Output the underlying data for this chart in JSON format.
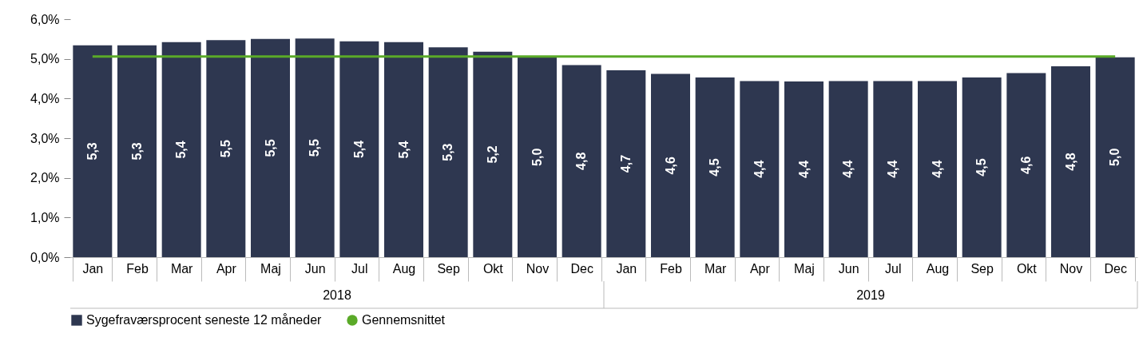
{
  "chart_data": {
    "type": "bar",
    "categories": [
      "Jan",
      "Feb",
      "Mar",
      "Apr",
      "Maj",
      "Jun",
      "Jul",
      "Aug",
      "Sep",
      "Okt",
      "Nov",
      "Dec",
      "Jan",
      "Feb",
      "Mar",
      "Apr",
      "Maj",
      "Jun",
      "Jul",
      "Aug",
      "Sep",
      "Okt",
      "Nov",
      "Dec"
    ],
    "series": [
      {
        "name": "Sygefraværsprocent seneste 12 måneder",
        "color": "#2e3750",
        "values": [
          5.34,
          5.34,
          5.42,
          5.47,
          5.5,
          5.51,
          5.44,
          5.42,
          5.29,
          5.18,
          5.04,
          4.84,
          4.71,
          4.62,
          4.53,
          4.44,
          4.43,
          4.44,
          4.44,
          4.44,
          4.53,
          4.64,
          4.81,
          5.04
        ],
        "value_labels": [
          "5,3",
          "5,3",
          "5,4",
          "5,5",
          "5,5",
          "5,5",
          "5,4",
          "5,4",
          "5,3",
          "5,2",
          "5,0",
          "4,8",
          "4,7",
          "4,6",
          "4,5",
          "4,4",
          "4,4",
          "4,4",
          "4,4",
          "4,4",
          "4,5",
          "4,6",
          "4,8",
          "5,0"
        ]
      },
      {
        "name": "Gennemsnittet",
        "type": "line",
        "color": "#5aaa28",
        "values": [
          5.06,
          5.06,
          5.06,
          5.06,
          5.06,
          5.06,
          5.06,
          5.06,
          5.06,
          5.06,
          5.06,
          5.06,
          5.06,
          5.06,
          5.06,
          5.06,
          5.06,
          5.06,
          5.06,
          5.06,
          5.06,
          5.06,
          5.06,
          5.06
        ]
      }
    ],
    "ylim": [
      0,
      6
    ],
    "yticks": [
      {
        "value": 0,
        "label": "0,0%"
      },
      {
        "value": 1,
        "label": "1,0%"
      },
      {
        "value": 2,
        "label": "2,0%"
      },
      {
        "value": 3,
        "label": "3,0%"
      },
      {
        "value": 4,
        "label": "4,0%"
      },
      {
        "value": 5,
        "label": "5,0%"
      },
      {
        "value": 6,
        "label": "6,0%"
      }
    ],
    "annotations": [
      "2018",
      "2019"
    ],
    "legend": "bottom"
  }
}
